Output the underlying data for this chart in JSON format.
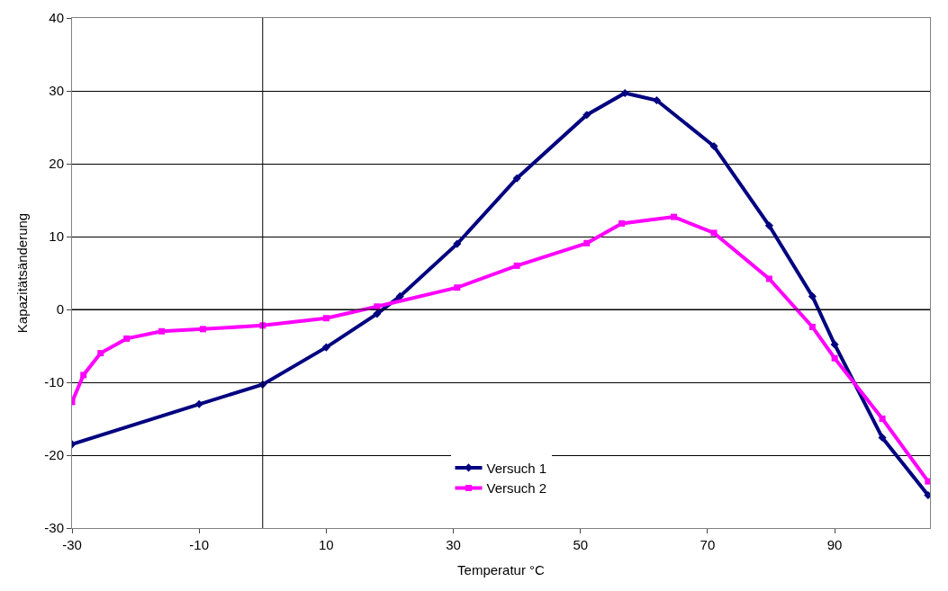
{
  "chart_data": {
    "type": "line",
    "xlabel": "Temperatur °C",
    "ylabel": "Kapazitätsänderung",
    "xlim": [
      -30,
      105
    ],
    "xticks": [
      -30,
      -10,
      10,
      30,
      50,
      70,
      90
    ],
    "ylim": [
      -30,
      40
    ],
    "yticks": [
      -30,
      -20,
      -10,
      0,
      10,
      20,
      30,
      40
    ],
    "grid": "y",
    "legend": "bottom",
    "series": [
      {
        "name": "Versuch 1",
        "color": "#000080",
        "marker": "diamond",
        "x": [
          -30,
          -10,
          0,
          10,
          18,
          21.6,
          30.6,
          40,
          51,
          57,
          62,
          71,
          79.7,
          86.5,
          90,
          97.5,
          104.7
        ],
        "values": [
          -18.5,
          -13,
          -10.3,
          -5.2,
          -0.6,
          1.8,
          9,
          18,
          26.7,
          29.7,
          28.7,
          22.4,
          11.5,
          1.8,
          -4.8,
          -17.6,
          -25.5
        ]
      },
      {
        "name": "Versuch 2",
        "color": "#ff00ff",
        "marker": "square",
        "x": [
          -30,
          -28.2,
          -25.5,
          -21.4,
          -15.9,
          -9.4,
          0,
          10,
          18,
          30.6,
          40,
          51,
          56.5,
          64.7,
          71,
          79.7,
          86.5,
          90,
          97.5,
          104.7
        ],
        "values": [
          -12.7,
          -9,
          -6,
          -4,
          -3,
          -2.7,
          -2.2,
          -1.2,
          0.4,
          3,
          6,
          9.1,
          11.8,
          12.7,
          10.5,
          4.2,
          -2.4,
          -6.7,
          -15,
          -23.6
        ]
      }
    ]
  }
}
